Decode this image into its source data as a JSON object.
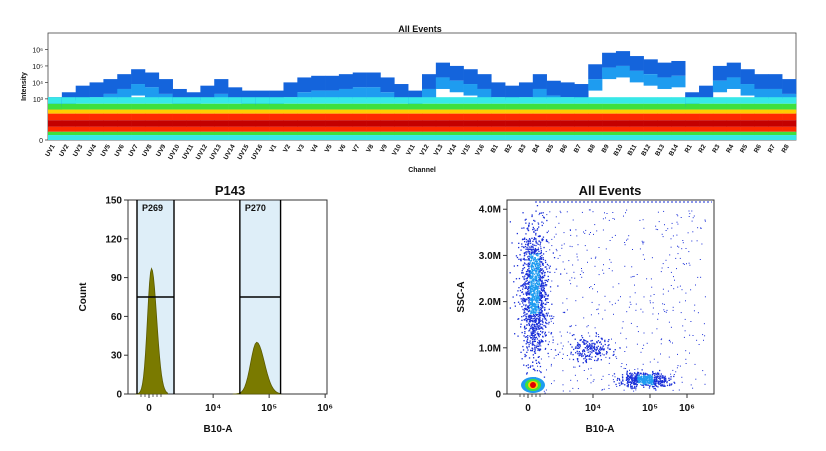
{
  "chart_data": [
    {
      "type": "heatmap",
      "title": "All Events",
      "xlabel": "Channel",
      "ylabel": "Intensity",
      "y_ticks": [
        "10⁶",
        "10⁵",
        "10⁴",
        "10³",
        "0"
      ],
      "categories": [
        "UV1",
        "UV2",
        "UV3",
        "UV4",
        "UV5",
        "UV6",
        "UV7",
        "UV8",
        "UV9",
        "UV10",
        "UV11",
        "UV12",
        "UV13",
        "UV14",
        "UV15",
        "UV16",
        "V1",
        "V2",
        "V3",
        "V4",
        "V5",
        "V6",
        "V7",
        "V8",
        "V9",
        "V10",
        "V11",
        "V12",
        "V13",
        "V14",
        "V15",
        "V16",
        "B1",
        "B2",
        "B3",
        "B4",
        "B5",
        "B6",
        "B7",
        "B8",
        "B9",
        "B10",
        "B11",
        "B12",
        "B13",
        "B14",
        "R1",
        "R2",
        "R3",
        "R4",
        "R5",
        "R6",
        "R7",
        "R8"
      ],
      "max_extent_log": [
        2.6,
        2.9,
        3.3,
        3.5,
        3.7,
        4.0,
        4.3,
        4.1,
        3.7,
        3.1,
        2.9,
        3.3,
        3.7,
        3.2,
        3.0,
        3.0,
        3.0,
        3.5,
        3.8,
        3.9,
        3.9,
        4.0,
        4.1,
        4.1,
        3.8,
        3.4,
        3.0,
        4.0,
        4.7,
        4.5,
        4.3,
        4.0,
        3.5,
        3.3,
        3.5,
        4.0,
        3.6,
        3.5,
        3.4,
        4.6,
        5.3,
        5.4,
        5.1,
        4.9,
        4.7,
        4.8,
        2.9,
        3.3,
        4.5,
        4.7,
        4.3,
        4.0,
        4.0,
        3.7
      ],
      "ylim_log": [
        0,
        6.5
      ],
      "colors": [
        "#c40000",
        "#ff2a00",
        "#ffcc00",
        "#3ee03e",
        "#38e8e8",
        "#1e9cf0",
        "#1464dc"
      ]
    },
    {
      "type": "histogram",
      "title": "P143",
      "xlabel": "B10-A",
      "ylabel": "Count",
      "ylim": [
        0,
        150
      ],
      "y_ticks": [
        "0",
        "30",
        "60",
        "90",
        "120",
        "150"
      ],
      "x_ticks": [
        "0",
        "10⁴",
        "10⁵",
        "10⁶"
      ],
      "gates": [
        {
          "name": "P269",
          "range": [
            "-1000",
            "2000"
          ],
          "level": 75
        },
        {
          "name": "P270",
          "range": [
            "30000",
            "160000"
          ],
          "level": 75
        }
      ],
      "peaks": [
        {
          "center": "200",
          "height": 97
        },
        {
          "center": "60000",
          "height": 40
        }
      ],
      "fill_color": "#7a7a00"
    },
    {
      "type": "scatter",
      "title": "All Events",
      "xlabel": "B10-A",
      "ylabel": "SSC-A",
      "y_ticks": [
        "0",
        "1.0M",
        "2.0M",
        "3.0M",
        "4.0M"
      ],
      "x_ticks": [
        "0",
        "10⁴",
        "10⁵",
        "10⁶"
      ],
      "ylim": [
        0,
        4200000
      ],
      "clusters": [
        {
          "x": "500",
          "y_center": 2200000,
          "spread": "tall"
        },
        {
          "x": "100000",
          "y_center": 300000,
          "spread": "flat"
        },
        {
          "x": "0",
          "y_center": 200000,
          "spread": "dense"
        }
      ],
      "colors": [
        "#1a2fd8",
        "#1e9cf0",
        "#3ee03e",
        "#ffcc00",
        "#e00000"
      ]
    }
  ]
}
